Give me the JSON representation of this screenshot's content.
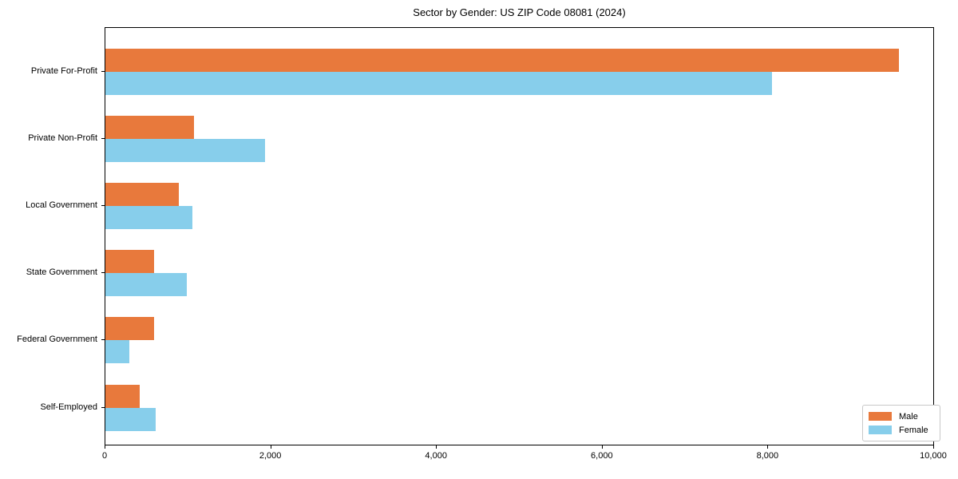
{
  "chart_data": {
    "type": "bar",
    "orientation": "horizontal",
    "title": "Sector by Gender: US ZIP Code 08081 (2024)",
    "categories": [
      "Private For-Profit",
      "Private Non-Profit",
      "Local Government",
      "State Government",
      "Federal Government",
      "Self-Employed"
    ],
    "series": [
      {
        "name": "Male",
        "color": "#e8793c",
        "values": [
          9580,
          1070,
          890,
          590,
          590,
          410
        ]
      },
      {
        "name": "Female",
        "color": "#87ceeb",
        "values": [
          8040,
          1930,
          1050,
          980,
          290,
          610
        ]
      }
    ],
    "xlim": [
      0,
      10000
    ],
    "x_ticks": [
      0,
      2000,
      4000,
      6000,
      8000,
      10000
    ],
    "x_tick_labels": [
      "0",
      "2,000",
      "4,000",
      "6,000",
      "8,000",
      "10,000"
    ],
    "xlabel": "",
    "ylabel": "",
    "grid": false,
    "legend": {
      "position": "lower right",
      "entries": [
        "Male",
        "Female"
      ]
    }
  }
}
